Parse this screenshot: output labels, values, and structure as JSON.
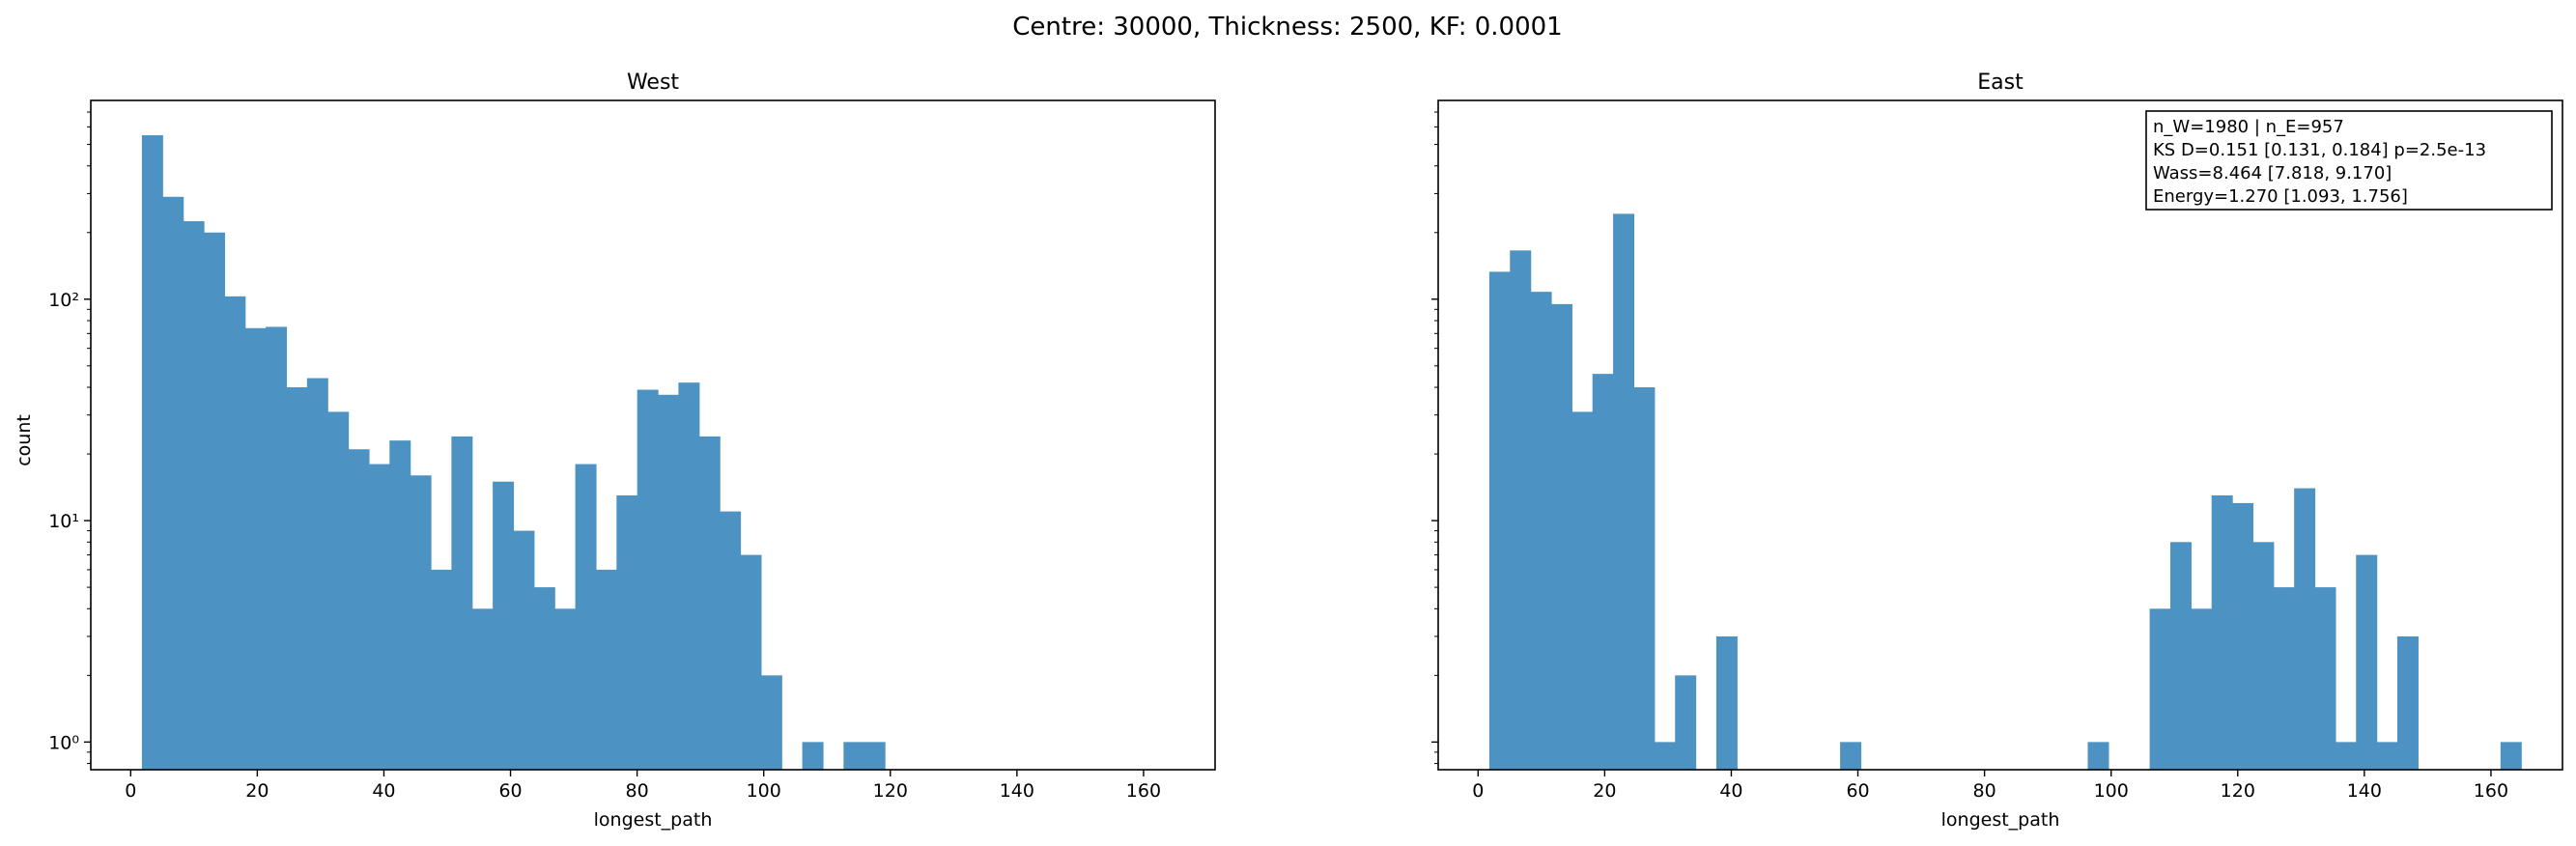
{
  "figure": {
    "suptitle": "Centre: 30000, Thickness: 2500, KF: 0.0001"
  },
  "chart_data": [
    {
      "type": "bar",
      "histogram": true,
      "title": "West",
      "xlabel": "longest_path",
      "ylabel": "count",
      "yscale": "log",
      "xlim": [
        -6.3,
        171.3
      ],
      "ylim": [
        0.75,
        790
      ],
      "xticks": [
        0,
        20,
        40,
        60,
        80,
        100,
        120,
        140,
        160
      ],
      "yticks": [
        {
          "value": 1,
          "label": "10⁰"
        },
        {
          "value": 10,
          "label": "10¹"
        },
        {
          "value": 100,
          "label": "10²"
        }
      ],
      "bin_width": 3.26,
      "bins_start": 1.77,
      "color": "#4c92c3",
      "counts": [
        550,
        290,
        225,
        200,
        103,
        74,
        75,
        40,
        44,
        31,
        21,
        18,
        23,
        16,
        6,
        24,
        4,
        15,
        9,
        5,
        4,
        18,
        6,
        13,
        39,
        37,
        42,
        24,
        11,
        7,
        2,
        0,
        1,
        0,
        1,
        1,
        0,
        0,
        0,
        0,
        0,
        0,
        0,
        0,
        0,
        0,
        0,
        0,
        0,
        0
      ]
    },
    {
      "type": "bar",
      "histogram": true,
      "title": "East",
      "xlabel": "longest_path",
      "ylabel": "",
      "yscale": "log",
      "xlim": [
        -6.3,
        171.3
      ],
      "ylim": [
        0.75,
        790
      ],
      "xticks": [
        0,
        20,
        40,
        60,
        80,
        100,
        120,
        140,
        160
      ],
      "yticks": [
        {
          "value": 1,
          "label": ""
        },
        {
          "value": 10,
          "label": ""
        },
        {
          "value": 100,
          "label": ""
        }
      ],
      "bin_width": 3.26,
      "bins_start": 1.77,
      "color": "#4c92c3",
      "counts": [
        133,
        166,
        108,
        95,
        31,
        46,
        243,
        40,
        1,
        2,
        0,
        3,
        0,
        0,
        0,
        0,
        0,
        1,
        0,
        0,
        0,
        0,
        0,
        0,
        0,
        0,
        0,
        0,
        0,
        1,
        0,
        0,
        4,
        8,
        4,
        13,
        12,
        8,
        5,
        14,
        5,
        1,
        7,
        1,
        3,
        0,
        0,
        0,
        0,
        1
      ],
      "annotation": [
        "n_W=1980 | n_E=957",
        "KS D=0.151 [0.131, 0.184]  p=2.5e-13",
        "Wass=8.464 [7.818, 9.170]",
        "Energy=1.270 [1.093, 1.756]"
      ]
    }
  ]
}
